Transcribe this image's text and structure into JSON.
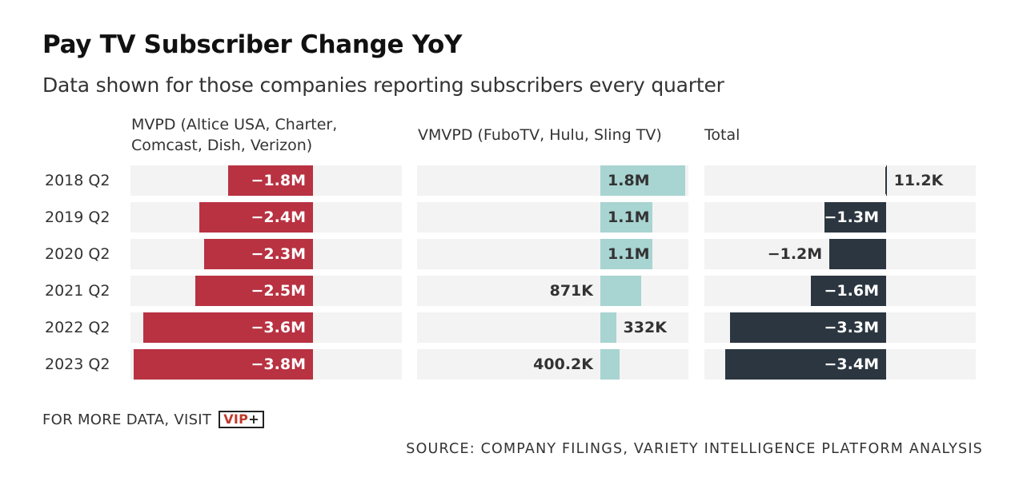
{
  "chart_data": {
    "type": "bar",
    "title": "Pay TV Subscriber Change YoY",
    "subtitle": "Data shown for those companies reporting subscribers every quarter",
    "categories": [
      "2018 Q2",
      "2019 Q2",
      "2020 Q2",
      "2021 Q2",
      "2022 Q2",
      "2023 Q2"
    ],
    "panels": [
      {
        "name_lines": [
          "MVPD (Altice USA, Charter,",
          "Comcast, Dish, Verizon)"
        ],
        "color": "#b83242",
        "values": [
          -1.8,
          -2.4,
          -2.3,
          -2.5,
          -3.6,
          -3.8
        ],
        "labels": [
          "−1.8M",
          "−2.4M",
          "−2.3M",
          "−2.5M",
          "−3.6M",
          "−3.8M"
        ]
      },
      {
        "name_lines": [
          "VMVPD (FuboTV, Hulu, Sling TV)"
        ],
        "color": "#a8d4d1",
        "values": [
          1.8,
          1.1,
          1.1,
          0.871,
          0.332,
          0.4002
        ],
        "labels": [
          "1.8M",
          "1.1M",
          "1.1M",
          "871K",
          "332K",
          "400.2K"
        ]
      },
      {
        "name_lines": [
          "Total"
        ],
        "color": "#2b3640",
        "values": [
          0.0112,
          -1.3,
          -1.2,
          -1.6,
          -3.3,
          -3.4
        ],
        "labels": [
          "11.2K",
          "−1.3M",
          "−1.2M",
          "−1.6M",
          "−3.3M",
          "−3.4M"
        ]
      }
    ]
  },
  "footer": {
    "more_data": "FOR MORE DATA, VISIT",
    "logo_text": "VIP",
    "logo_plus": "+"
  },
  "source": "SOURCE: COMPANY FILINGS, VARIETY INTELLIGENCE PLATFORM ANALYSIS"
}
